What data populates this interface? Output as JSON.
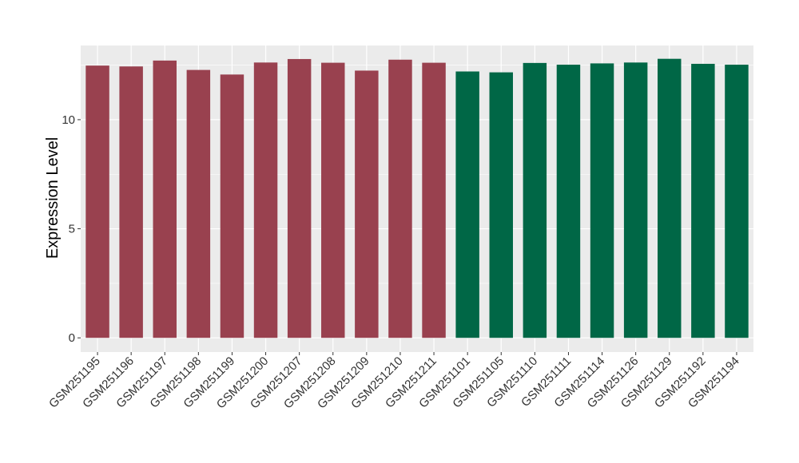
{
  "chart_data": {
    "type": "bar",
    "title": "",
    "xlabel": "",
    "ylabel": "Expression Level",
    "ylim": [
      -0.65,
      13.4
    ],
    "yticks": [
      0,
      5,
      10
    ],
    "grid": true,
    "legend": "none",
    "categories": [
      "GSM251195",
      "GSM251196",
      "GSM251197",
      "GSM251198",
      "GSM251199",
      "GSM251200",
      "GSM251207",
      "GSM251208",
      "GSM251209",
      "GSM251210",
      "GSM251211",
      "GSM251101",
      "GSM251105",
      "GSM251110",
      "GSM251111",
      "GSM251114",
      "GSM251126",
      "GSM251129",
      "GSM251192",
      "GSM251194"
    ],
    "values": [
      12.48,
      12.44,
      12.71,
      12.28,
      12.07,
      12.62,
      12.78,
      12.61,
      12.25,
      12.75,
      12.61,
      12.21,
      12.17,
      12.6,
      12.52,
      12.58,
      12.62,
      12.79,
      12.56,
      12.52
    ],
    "groups": [
      "g1",
      "g1",
      "g1",
      "g1",
      "g1",
      "g1",
      "g1",
      "g1",
      "g1",
      "g1",
      "g1",
      "g2",
      "g2",
      "g2",
      "g2",
      "g2",
      "g2",
      "g2",
      "g2",
      "g2"
    ],
    "colors": {
      "g1": "#99414f",
      "g2": "#006746"
    },
    "panel_background": "#ebebeb",
    "gridline_color": "#ffffff"
  }
}
